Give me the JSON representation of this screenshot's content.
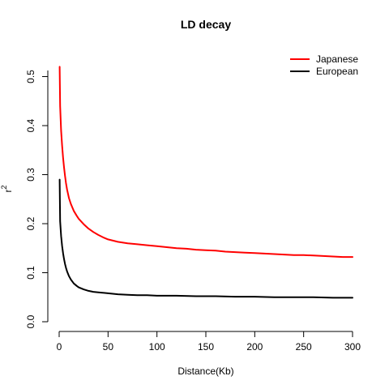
{
  "chart_data": {
    "type": "line",
    "title": "LD decay",
    "xlabel": "Distance(Kb)",
    "ylabel": "r",
    "ylabel_superscript": "2",
    "xlim": [
      0,
      300
    ],
    "ylim": [
      0,
      0.52
    ],
    "xticks": [
      "0",
      "50",
      "100",
      "150",
      "200",
      "250",
      "300"
    ],
    "yticks": [
      "0.0",
      "0.1",
      "0.2",
      "0.3",
      "0.4",
      "0.5"
    ],
    "grid": false,
    "legend_position": "top-right",
    "series": [
      {
        "name": "Japanese",
        "color": "#ff0000",
        "x": [
          0.5,
          1,
          2,
          3,
          4,
          5,
          6,
          7,
          8,
          10,
          12,
          15,
          18,
          20,
          25,
          30,
          35,
          40,
          45,
          50,
          60,
          70,
          80,
          90,
          100,
          110,
          120,
          130,
          140,
          150,
          160,
          170,
          180,
          190,
          200,
          210,
          220,
          230,
          240,
          250,
          260,
          270,
          280,
          290,
          300
        ],
        "values": [
          0.52,
          0.44,
          0.39,
          0.36,
          0.335,
          0.315,
          0.298,
          0.283,
          0.27,
          0.252,
          0.24,
          0.226,
          0.216,
          0.21,
          0.199,
          0.19,
          0.183,
          0.177,
          0.172,
          0.168,
          0.163,
          0.16,
          0.158,
          0.156,
          0.154,
          0.152,
          0.15,
          0.149,
          0.147,
          0.146,
          0.145,
          0.143,
          0.142,
          0.141,
          0.14,
          0.139,
          0.138,
          0.137,
          0.136,
          0.136,
          0.135,
          0.134,
          0.133,
          0.132,
          0.132
        ]
      },
      {
        "name": "European",
        "color": "#000000",
        "x": [
          0.5,
          1,
          2,
          3,
          4,
          5,
          6,
          7,
          8,
          10,
          12,
          15,
          18,
          20,
          25,
          30,
          35,
          40,
          50,
          60,
          70,
          80,
          90,
          100,
          120,
          140,
          160,
          180,
          200,
          220,
          240,
          260,
          280,
          300
        ],
        "values": [
          0.29,
          0.205,
          0.175,
          0.155,
          0.14,
          0.128,
          0.118,
          0.11,
          0.103,
          0.093,
          0.086,
          0.078,
          0.073,
          0.07,
          0.066,
          0.063,
          0.061,
          0.06,
          0.058,
          0.056,
          0.055,
          0.054,
          0.054,
          0.053,
          0.053,
          0.052,
          0.052,
          0.051,
          0.051,
          0.05,
          0.05,
          0.05,
          0.049,
          0.049
        ]
      }
    ]
  }
}
